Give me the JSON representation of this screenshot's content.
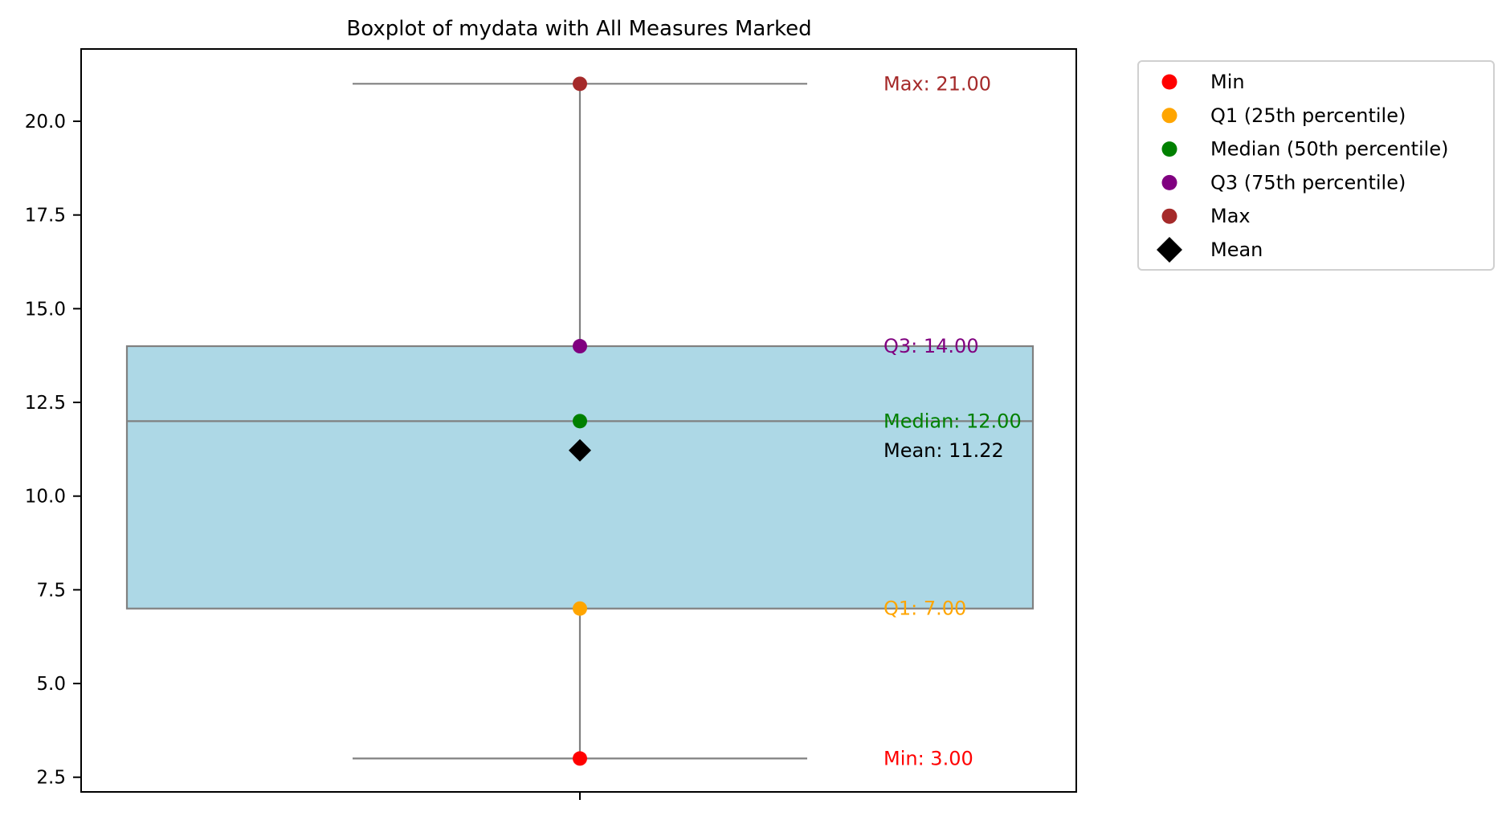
{
  "chart_data": {
    "type": "box",
    "title": "Boxplot of mydata with All Measures Marked",
    "xlabel": "",
    "ylabel": "",
    "ylim": [
      2.11,
      21.93
    ],
    "yticks": [
      2.5,
      5.0,
      7.5,
      10.0,
      12.5,
      15.0,
      17.5,
      20.0
    ],
    "ytick_labels": [
      "2.5",
      "5.0",
      "7.5",
      "10.0",
      "12.5",
      "15.0",
      "17.5",
      "20.0"
    ],
    "grid": false,
    "legend_position": "outside upper right",
    "box": {
      "fill": "#add8e6",
      "edge": "#808080"
    },
    "stats": {
      "min": 3.0,
      "q1": 7.0,
      "median": 12.0,
      "q3": 14.0,
      "max": 21.0,
      "mean": 11.22
    },
    "markers": [
      {
        "name": "Min",
        "value": 3.0,
        "color": "#ff0000",
        "shape": "circle",
        "label": "Min: 3.00"
      },
      {
        "name": "Q1 (25th percentile)",
        "value": 7.0,
        "color": "#ffa500",
        "shape": "circle",
        "label": "Q1: 7.00"
      },
      {
        "name": "Median (50th percentile)",
        "value": 12.0,
        "color": "#008000",
        "shape": "circle",
        "label": "Median: 12.00"
      },
      {
        "name": "Q3 (75th percentile)",
        "value": 14.0,
        "color": "#800080",
        "shape": "circle",
        "label": "Q3: 14.00"
      },
      {
        "name": "Max",
        "value": 21.0,
        "color": "#a52a2a",
        "shape": "circle",
        "label": "Max: 21.00"
      },
      {
        "name": "Mean",
        "value": 11.22,
        "color": "#000000",
        "shape": "diamond",
        "label": "Mean: 11.22"
      }
    ]
  }
}
